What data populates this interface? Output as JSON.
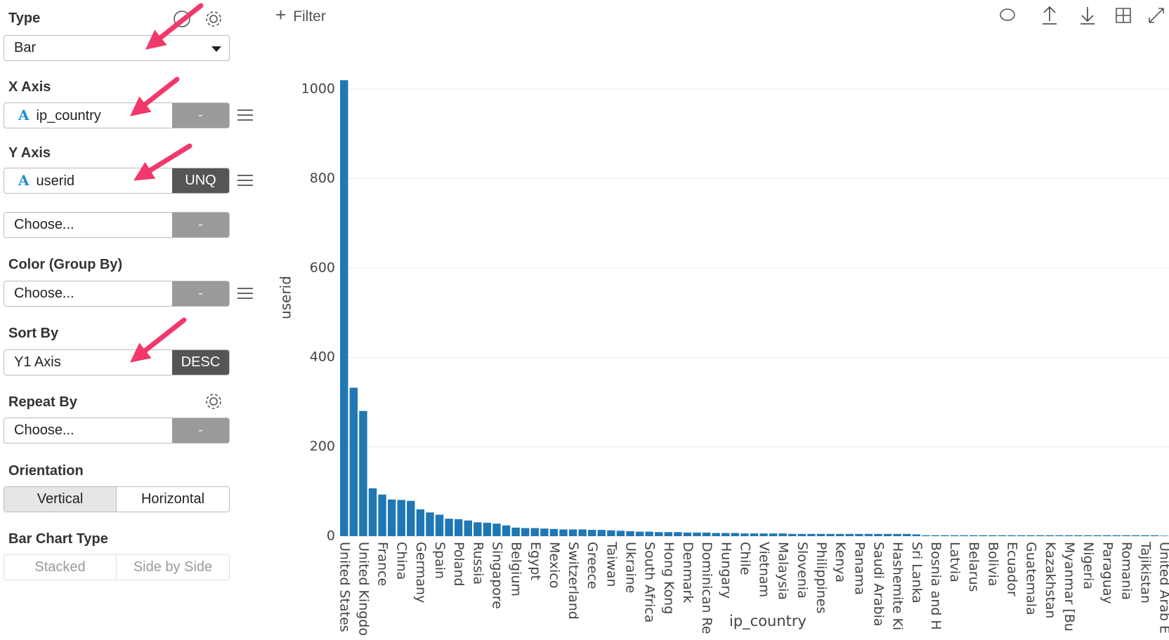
{
  "toolbar": {
    "filter": "Filter"
  },
  "sidebar": {
    "type": {
      "label": "Type",
      "value": "Bar"
    },
    "x_axis": {
      "label": "X Axis",
      "icon": "A",
      "value": "ip_country",
      "button": "-"
    },
    "y_axis": {
      "label": "Y Axis",
      "icon": "A",
      "value": "userid",
      "button": "UNQ"
    },
    "y_axis_2": {
      "value": "Choose...",
      "button": "-"
    },
    "color": {
      "label": "Color (Group By)",
      "value": "Choose...",
      "button": "-"
    },
    "sort_by": {
      "label": "Sort By",
      "value": "Y1 Axis",
      "button": "DESC"
    },
    "repeat_by": {
      "label": "Repeat By",
      "value": "Choose...",
      "button": "-"
    },
    "orientation": {
      "label": "Orientation",
      "options": [
        "Vertical",
        "Horizontal"
      ]
    },
    "bar_chart_type": {
      "label": "Bar Chart Type",
      "options": [
        "Stacked",
        "Side by Side"
      ]
    }
  },
  "chart_data": {
    "type": "bar",
    "x_label": "ip_country",
    "y_label": "userid",
    "color": "#1f77b4",
    "grid": true,
    "ylim": [
      0,
      1033
    ],
    "yticks": [
      0,
      200,
      400,
      600,
      800,
      1000
    ],
    "categories": [
      "United States",
      null,
      "United Kingdo",
      null,
      "France",
      null,
      "China",
      null,
      "Germany",
      null,
      "Spain",
      null,
      "Poland",
      null,
      "Russia",
      null,
      "Singapore",
      null,
      "Belgium",
      null,
      "Egypt",
      null,
      "Mexico",
      null,
      "Switzerland",
      null,
      "Greece",
      null,
      "Taiwan",
      null,
      "Ukraine",
      null,
      "South Africa",
      null,
      "Hong Kong",
      null,
      "Denmark",
      null,
      "Dominican Re",
      null,
      "Hungary",
      null,
      "Chile",
      null,
      "Vietnam",
      null,
      "Malaysia",
      null,
      "Slovenia",
      null,
      "Philippines",
      null,
      "Kenya",
      null,
      "Panama",
      null,
      "Saudi Arabia",
      null,
      "Hashemite Ki",
      null,
      "Sri Lanka",
      null,
      "Bosnia and H",
      null,
      "Latvia",
      null,
      "Belarus",
      null,
      "Bolivia",
      null,
      "Ecuador",
      null,
      "Guatemala",
      null,
      "Kazakhstan",
      null,
      "Myanmar [Bu",
      null,
      "Nigeria",
      null,
      "Paraguay",
      null,
      "Romania",
      null,
      "Tajikistan",
      null,
      "United Arab E"
    ],
    "values": [
      1020,
      332,
      280,
      107,
      93,
      82,
      81,
      79,
      60,
      53,
      48,
      39,
      38,
      35,
      31,
      30,
      28,
      24,
      19,
      18,
      18,
      17,
      16,
      15,
      15,
      15,
      14,
      14,
      13,
      12,
      11,
      10,
      10,
      9,
      9,
      9,
      8,
      8,
      8,
      7,
      7,
      7,
      6,
      6,
      6,
      6,
      6,
      5,
      5,
      5,
      5,
      5,
      5,
      5,
      5,
      5,
      5,
      5,
      5,
      5,
      4,
      2,
      2,
      2,
      2,
      2,
      2,
      2,
      2,
      2,
      2,
      2,
      2,
      2,
      2,
      2,
      2,
      2,
      2,
      2,
      2,
      2,
      2,
      2,
      2,
      2,
      1
    ]
  }
}
